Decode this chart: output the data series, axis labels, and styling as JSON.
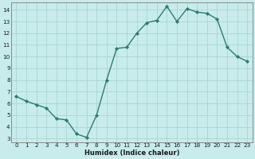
{
  "x": [
    0,
    1,
    2,
    3,
    4,
    5,
    6,
    7,
    8,
    9,
    10,
    11,
    12,
    13,
    14,
    15,
    16,
    17,
    18,
    19,
    20,
    21,
    22,
    23
  ],
  "y": [
    6.6,
    6.2,
    5.9,
    5.6,
    4.7,
    4.6,
    3.4,
    3.1,
    5.0,
    8.0,
    10.7,
    10.8,
    12.0,
    12.9,
    13.1,
    14.3,
    13.0,
    14.1,
    13.8,
    13.7,
    13.2,
    10.8,
    10.0,
    9.6
  ],
  "line_color": "#2e7d6e",
  "marker": "D",
  "marker_size": 2.2,
  "bg_color": "#c8ecec",
  "grid_color": "#aad4d4",
  "xlabel": "Humidex (Indice chaleur)",
  "ylim": [
    2.7,
    14.6
  ],
  "xlim": [
    -0.5,
    23.5
  ],
  "yticks": [
    3,
    4,
    5,
    6,
    7,
    8,
    9,
    10,
    11,
    12,
    13,
    14
  ],
  "xticks": [
    0,
    1,
    2,
    3,
    4,
    5,
    6,
    7,
    8,
    9,
    10,
    11,
    12,
    13,
    14,
    15,
    16,
    17,
    18,
    19,
    20,
    21,
    22,
    23
  ],
  "axis_label_color": "#1a1a1a",
  "tick_color": "#1a1a1a",
  "spine_color": "#888888",
  "linewidth": 1.0,
  "xlabel_fontsize": 6.0,
  "tick_fontsize": 5.2
}
